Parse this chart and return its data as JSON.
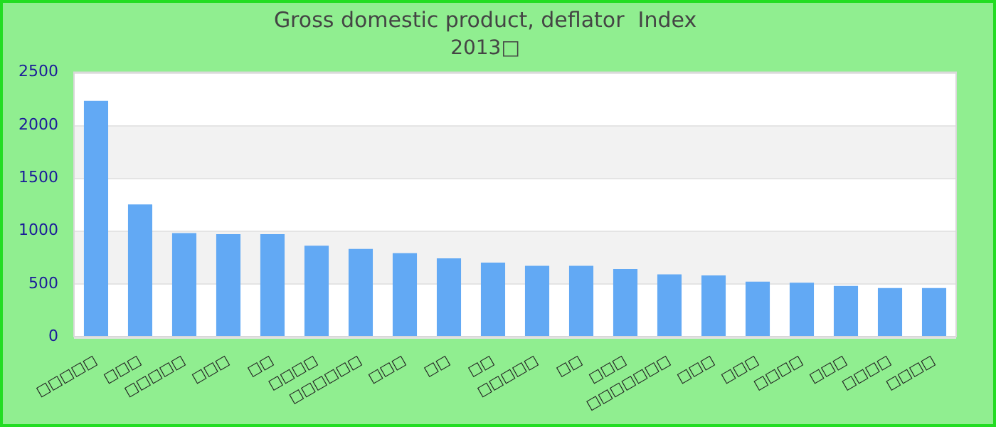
{
  "chart_data": {
    "type": "bar",
    "title": "Gross domestic product, deflator  Index",
    "subtitle": "2013□",
    "categories": [
      "□□□□□",
      "□□□",
      "□□□□□",
      "□□□",
      "□□",
      "□□□□",
      "□□□□□□",
      "□□□",
      "□□",
      "□□",
      "□□□□□",
      "□□",
      "□□□",
      "□□□□□□□",
      "□□□",
      "□□□",
      "□□□□",
      "□□□",
      "□□□□",
      "□□□□"
    ],
    "values": [
      2230,
      1250,
      980,
      970,
      970,
      860,
      830,
      790,
      740,
      700,
      670,
      670,
      640,
      590,
      580,
      520,
      510,
      480,
      460,
      460
    ],
    "color": "#62a9f4",
    "ylim": [
      0,
      2500
    ],
    "yticks": [
      0,
      500,
      1000,
      1500,
      2000,
      2500
    ],
    "grid": "y",
    "legend": false
  }
}
